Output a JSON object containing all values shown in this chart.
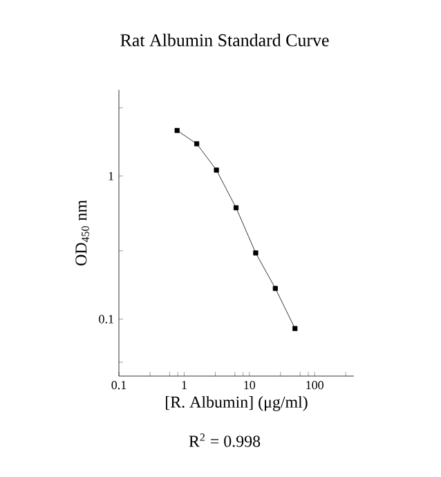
{
  "chart_data": {
    "type": "line",
    "title": "Rat Albumin Standard Curve",
    "xlabel": "[R. Albumin] (μg/ml)",
    "ylabel": "OD$_{450}$ nm",
    "annotations": [
      "R$^{2}$ = 0.998"
    ],
    "x": [
      0.78,
      1.56,
      3.125,
      6.25,
      12.5,
      25,
      50
    ],
    "series": [
      {
        "color": "#000000",
        "values": [
          2.08,
          1.68,
          1.1,
          0.6,
          0.29,
          0.164,
          0.086
        ]
      }
    ],
    "xlim": [
      0.1,
      400
    ],
    "ylim": [
      0.04,
      4
    ],
    "log": "xy",
    "xticks": [
      0.1,
      {
        "value": 0.3,
        "label": null
      },
      {
        "value": 0.6,
        "label": null
      },
      {
        "value": 0.8,
        "label": null
      },
      1,
      {
        "value": 3,
        "label": null
      },
      {
        "value": 6,
        "label": null
      },
      {
        "value": 8,
        "label": null
      },
      10,
      {
        "value": 30,
        "label": null
      },
      {
        "value": 60,
        "label": null
      },
      {
        "value": 80,
        "label": null
      },
      100,
      {
        "value": 300,
        "label": null
      }
    ],
    "yticks": [
      {
        "value": 0.05,
        "label": null
      },
      0.1,
      {
        "value": 0.3,
        "label": null
      },
      1,
      {
        "value": 3,
        "label": null
      }
    ],
    "marker": "square",
    "line_style": "solid"
  }
}
